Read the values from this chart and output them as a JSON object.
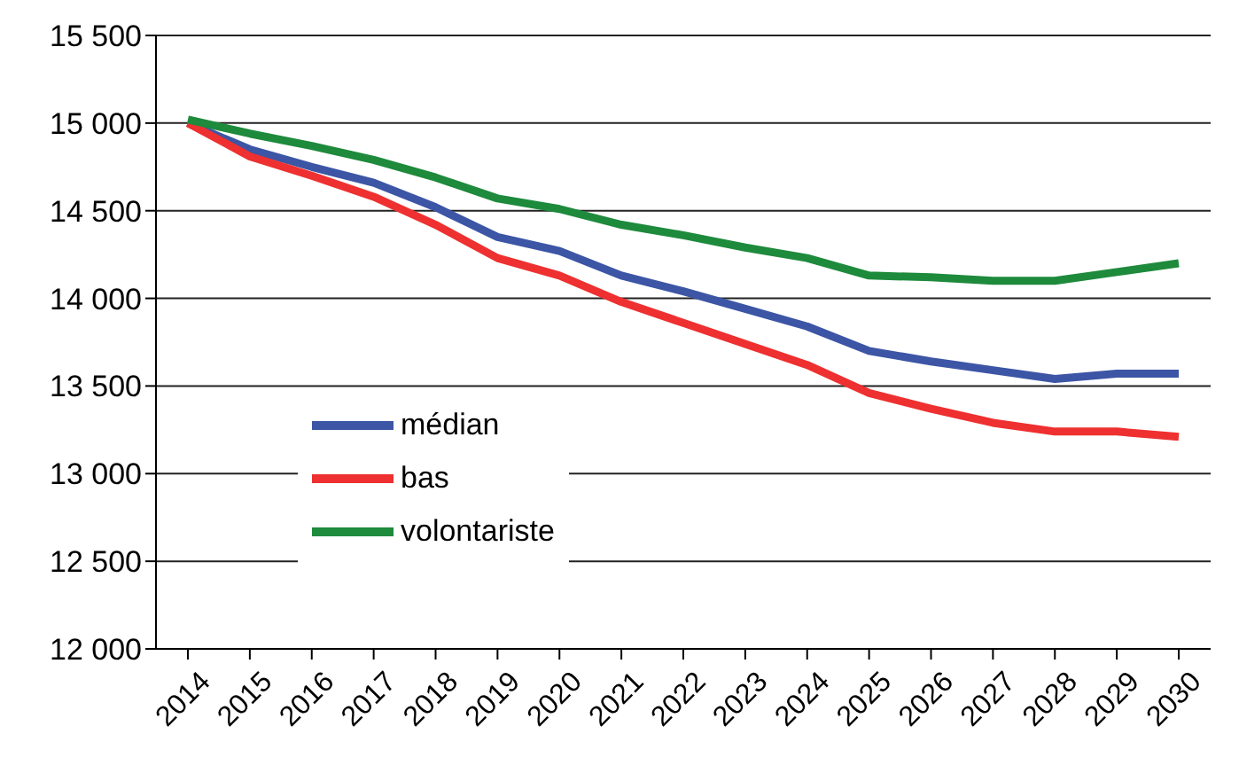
{
  "chart_data": {
    "type": "line",
    "categories": [
      "2014",
      "2015",
      "2016",
      "2017",
      "2018",
      "2019",
      "2020",
      "2021",
      "2022",
      "2023",
      "2024",
      "2025",
      "2026",
      "2027",
      "2028",
      "2029",
      "2030"
    ],
    "series": [
      {
        "name": "médian",
        "color": "#3c55a5",
        "values": [
          15000,
          14850,
          14750,
          14660,
          14520,
          14350,
          14270,
          14130,
          14040,
          13940,
          13840,
          13700,
          13640,
          13590,
          13540,
          13570,
          13570
        ]
      },
      {
        "name": "bas",
        "color": "#ee3030",
        "values": [
          15000,
          14810,
          14700,
          14580,
          14420,
          14230,
          14130,
          13980,
          13860,
          13740,
          13620,
          13460,
          13370,
          13290,
          13240,
          13240,
          13210
        ]
      },
      {
        "name": "volontariste",
        "color": "#1e8a3c",
        "values": [
          15020,
          14940,
          14870,
          14790,
          14690,
          14570,
          14510,
          14420,
          14360,
          14290,
          14230,
          14130,
          14120,
          14100,
          14100,
          14150,
          14200
        ]
      }
    ],
    "ylim": [
      12000,
      15500
    ],
    "yticks": [
      {
        "value": 12000,
        "label": "12 000"
      },
      {
        "value": 12500,
        "label": "12 500"
      },
      {
        "value": 13000,
        "label": "13 000"
      },
      {
        "value": 13500,
        "label": "13 500"
      },
      {
        "value": 14000,
        "label": "14 000"
      },
      {
        "value": 14500,
        "label": "14 500"
      },
      {
        "value": 15000,
        "label": "15 000"
      },
      {
        "value": 15500,
        "label": "15 500"
      }
    ],
    "grid": "y",
    "legend": "left",
    "marker": "none",
    "line_style": "solid"
  }
}
